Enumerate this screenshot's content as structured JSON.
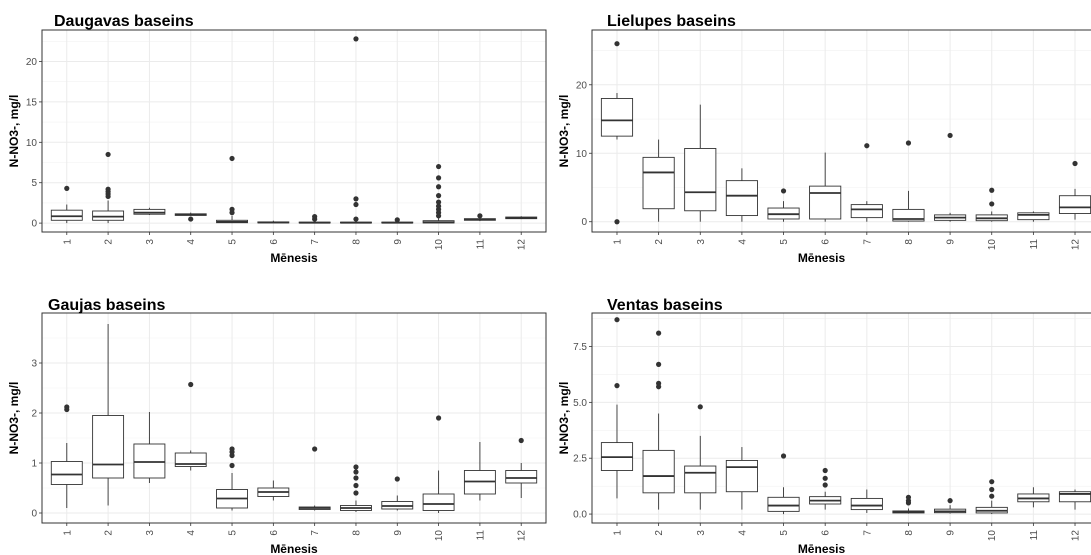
{
  "chart_data": [
    {
      "type": "boxplot",
      "title": "Daugavas baseins",
      "xlabel": "Mēnesis",
      "ylabel": "N-NO3-, mg/l",
      "categories": [
        "1",
        "2",
        "3",
        "4",
        "5",
        "6",
        "7",
        "8",
        "9",
        "10",
        "11",
        "12"
      ],
      "ylim": [
        -1.1,
        23.9
      ],
      "yticks": [
        0,
        5,
        10,
        15,
        20
      ],
      "boxes": [
        {
          "min": 0,
          "q1": 0.35,
          "median": 0.85,
          "q3": 1.6,
          "max": 2.3,
          "outliers": [
            4.3
          ]
        },
        {
          "min": 0,
          "q1": 0.35,
          "median": 0.8,
          "q3": 1.5,
          "max": 2.8,
          "outliers": [
            3.3,
            3.6,
            3.9,
            4.2,
            8.5
          ]
        },
        {
          "min": 1.0,
          "q1": 1.1,
          "median": 1.3,
          "q3": 1.7,
          "max": 1.9,
          "outliers": []
        },
        {
          "min": 0.9,
          "q1": 0.95,
          "median": 1.05,
          "q3": 1.15,
          "max": 1.3,
          "outliers": [
            0.5
          ]
        },
        {
          "min": 0,
          "q1": 0.05,
          "median": 0.15,
          "q3": 0.35,
          "max": 0.9,
          "outliers": [
            1.3,
            1.7,
            8.0
          ]
        },
        {
          "min": 0,
          "q1": 0.03,
          "median": 0.08,
          "q3": 0.15,
          "max": 0.3,
          "outliers": []
        },
        {
          "min": 0,
          "q1": 0.02,
          "median": 0.05,
          "q3": 0.12,
          "max": 0.25,
          "outliers": [
            0.5,
            0.8
          ]
        },
        {
          "min": 0,
          "q1": 0.02,
          "median": 0.05,
          "q3": 0.12,
          "max": 0.3,
          "outliers": [
            0.5,
            2.3,
            3.0,
            22.8
          ]
        },
        {
          "min": 0,
          "q1": 0.02,
          "median": 0.05,
          "q3": 0.12,
          "max": 0.25,
          "outliers": [
            0.4
          ]
        },
        {
          "min": 0,
          "q1": 0.02,
          "median": 0.1,
          "q3": 0.3,
          "max": 0.6,
          "outliers": [
            0.9,
            1.3,
            1.7,
            2.1,
            2.6,
            3.4,
            4.5,
            5.6,
            7.0
          ]
        },
        {
          "min": 0.25,
          "q1": 0.35,
          "median": 0.45,
          "q3": 0.55,
          "max": 0.65,
          "outliers": [
            0.9
          ]
        },
        {
          "min": 0.5,
          "q1": 0.55,
          "median": 0.65,
          "q3": 0.75,
          "max": 0.85,
          "outliers": []
        }
      ]
    },
    {
      "type": "boxplot",
      "title": "Lielupes baseins",
      "xlabel": "Mēnesis",
      "ylabel": "N-NO3-, mg/l",
      "categories": [
        "1",
        "2",
        "3",
        "4",
        "5",
        "6",
        "7",
        "8",
        "9",
        "10",
        "11",
        "12"
      ],
      "ylim": [
        -1.5,
        28
      ],
      "yticks": [
        0,
        10,
        20
      ],
      "boxes": [
        {
          "min": 12.0,
          "q1": 12.5,
          "median": 14.8,
          "q3": 18.0,
          "max": 18.8,
          "outliers": [
            0,
            26.0
          ]
        },
        {
          "min": 0,
          "q1": 1.9,
          "median": 7.2,
          "q3": 9.4,
          "max": 12.0,
          "outliers": []
        },
        {
          "min": 0,
          "q1": 1.6,
          "median": 4.3,
          "q3": 10.7,
          "max": 17.1,
          "outliers": []
        },
        {
          "min": 0,
          "q1": 0.9,
          "median": 3.8,
          "q3": 6.0,
          "max": 7.8,
          "outliers": []
        },
        {
          "min": 0,
          "q1": 0.4,
          "median": 1.1,
          "q3": 2.0,
          "max": 3.0,
          "outliers": [
            4.5
          ]
        },
        {
          "min": 0,
          "q1": 0.4,
          "median": 4.2,
          "q3": 5.2,
          "max": 10.1,
          "outliers": []
        },
        {
          "min": 0,
          "q1": 0.6,
          "median": 1.8,
          "q3": 2.5,
          "max": 3.0,
          "outliers": [
            11.1
          ]
        },
        {
          "min": 0,
          "q1": 0.1,
          "median": 0.4,
          "q3": 1.8,
          "max": 4.5,
          "outliers": [
            11.5
          ]
        },
        {
          "min": 0,
          "q1": 0.2,
          "median": 0.6,
          "q3": 1.0,
          "max": 1.3,
          "outliers": [
            12.6
          ]
        },
        {
          "min": 0,
          "q1": 0.15,
          "median": 0.5,
          "q3": 1.0,
          "max": 1.5,
          "outliers": [
            2.6,
            4.6
          ]
        },
        {
          "min": 0,
          "q1": 0.3,
          "median": 1.0,
          "q3": 1.3,
          "max": 1.5,
          "outliers": []
        },
        {
          "min": 0.3,
          "q1": 1.2,
          "median": 2.1,
          "q3": 3.8,
          "max": 4.8,
          "outliers": [
            8.5
          ]
        }
      ]
    },
    {
      "type": "boxplot",
      "title": "Gaujas baseins",
      "xlabel": "Mēnesis",
      "ylabel": "N-NO3-, mg/l",
      "categories": [
        "1",
        "2",
        "3",
        "4",
        "5",
        "6",
        "7",
        "8",
        "9",
        "10",
        "11",
        "12"
      ],
      "ylim": [
        -0.2,
        4.0
      ],
      "yticks": [
        0,
        1,
        2,
        3
      ],
      "boxes": [
        {
          "min": 0.1,
          "q1": 0.57,
          "median": 0.77,
          "q3": 1.03,
          "max": 1.4,
          "outliers": [
            2.07,
            2.12
          ]
        },
        {
          "min": 0.15,
          "q1": 0.7,
          "median": 0.97,
          "q3": 1.95,
          "max": 3.78,
          "outliers": []
        },
        {
          "min": 0.6,
          "q1": 0.7,
          "median": 1.02,
          "q3": 1.38,
          "max": 2.02,
          "outliers": []
        },
        {
          "min": 0.85,
          "q1": 0.93,
          "median": 0.98,
          "q3": 1.2,
          "max": 1.25,
          "outliers": [
            2.57
          ]
        },
        {
          "min": 0.05,
          "q1": 0.1,
          "median": 0.29,
          "q3": 0.47,
          "max": 0.8,
          "outliers": [
            0.95,
            1.15,
            1.22,
            1.28
          ]
        },
        {
          "min": 0.25,
          "q1": 0.33,
          "median": 0.42,
          "q3": 0.5,
          "max": 0.65,
          "outliers": []
        },
        {
          "min": 0.05,
          "q1": 0.07,
          "median": 0.1,
          "q3": 0.12,
          "max": 0.15,
          "outliers": [
            1.28
          ]
        },
        {
          "min": 0.02,
          "q1": 0.05,
          "median": 0.1,
          "q3": 0.15,
          "max": 0.25,
          "outliers": [
            0.4,
            0.55,
            0.7,
            0.82,
            0.92
          ]
        },
        {
          "min": 0.05,
          "q1": 0.08,
          "median": 0.14,
          "q3": 0.23,
          "max": 0.35,
          "outliers": [
            0.68
          ]
        },
        {
          "min": 0,
          "q1": 0.05,
          "median": 0.18,
          "q3": 0.38,
          "max": 0.85,
          "outliers": [
            1.9
          ]
        },
        {
          "min": 0.25,
          "q1": 0.38,
          "median": 0.63,
          "q3": 0.85,
          "max": 1.42,
          "outliers": []
        },
        {
          "min": 0.3,
          "q1": 0.6,
          "median": 0.7,
          "q3": 0.85,
          "max": 1.0,
          "outliers": [
            1.45
          ]
        }
      ]
    },
    {
      "type": "boxplot",
      "title": "Ventas baseins",
      "xlabel": "Mēnesis",
      "ylabel": "N-NO3-, mg/l",
      "categories": [
        "1",
        "2",
        "3",
        "4",
        "5",
        "6",
        "7",
        "8",
        "9",
        "10",
        "11",
        "12"
      ],
      "ylim": [
        -0.4,
        9.0
      ],
      "yticks": [
        0.0,
        2.5,
        5.0,
        7.5
      ],
      "boxes": [
        {
          "min": 0.7,
          "q1": 1.95,
          "median": 2.55,
          "q3": 3.2,
          "max": 4.9,
          "outliers": [
            5.75,
            8.7
          ]
        },
        {
          "min": 0.2,
          "q1": 0.95,
          "median": 1.7,
          "q3": 2.85,
          "max": 4.5,
          "outliers": [
            5.7,
            5.85,
            6.7,
            8.1
          ]
        },
        {
          "min": 0.2,
          "q1": 0.95,
          "median": 1.85,
          "q3": 2.15,
          "max": 3.5,
          "outliers": [
            4.8
          ]
        },
        {
          "min": 0.2,
          "q1": 1.0,
          "median": 2.1,
          "q3": 2.4,
          "max": 3.0,
          "outliers": []
        },
        {
          "min": 0,
          "q1": 0.12,
          "median": 0.38,
          "q3": 0.75,
          "max": 1.2,
          "outliers": [
            2.6
          ]
        },
        {
          "min": 0.2,
          "q1": 0.45,
          "median": 0.6,
          "q3": 0.78,
          "max": 1.0,
          "outliers": [
            1.3,
            1.6,
            1.95
          ]
        },
        {
          "min": 0.05,
          "q1": 0.2,
          "median": 0.38,
          "q3": 0.7,
          "max": 1.1,
          "outliers": []
        },
        {
          "min": 0.02,
          "q1": 0.05,
          "median": 0.1,
          "q3": 0.14,
          "max": 0.25,
          "outliers": [
            0.5,
            0.6,
            0.75
          ]
        },
        {
          "min": 0.02,
          "q1": 0.06,
          "median": 0.12,
          "q3": 0.22,
          "max": 0.4,
          "outliers": [
            0.6
          ]
        },
        {
          "min": 0,
          "q1": 0.05,
          "median": 0.15,
          "q3": 0.3,
          "max": 0.6,
          "outliers": [
            0.8,
            1.1,
            1.45
          ]
        },
        {
          "min": 0.3,
          "q1": 0.55,
          "median": 0.7,
          "q3": 0.9,
          "max": 1.2,
          "outliers": []
        },
        {
          "min": 0.2,
          "q1": 0.55,
          "median": 0.9,
          "q3": 1.0,
          "max": 1.1,
          "outliers": []
        }
      ]
    }
  ]
}
